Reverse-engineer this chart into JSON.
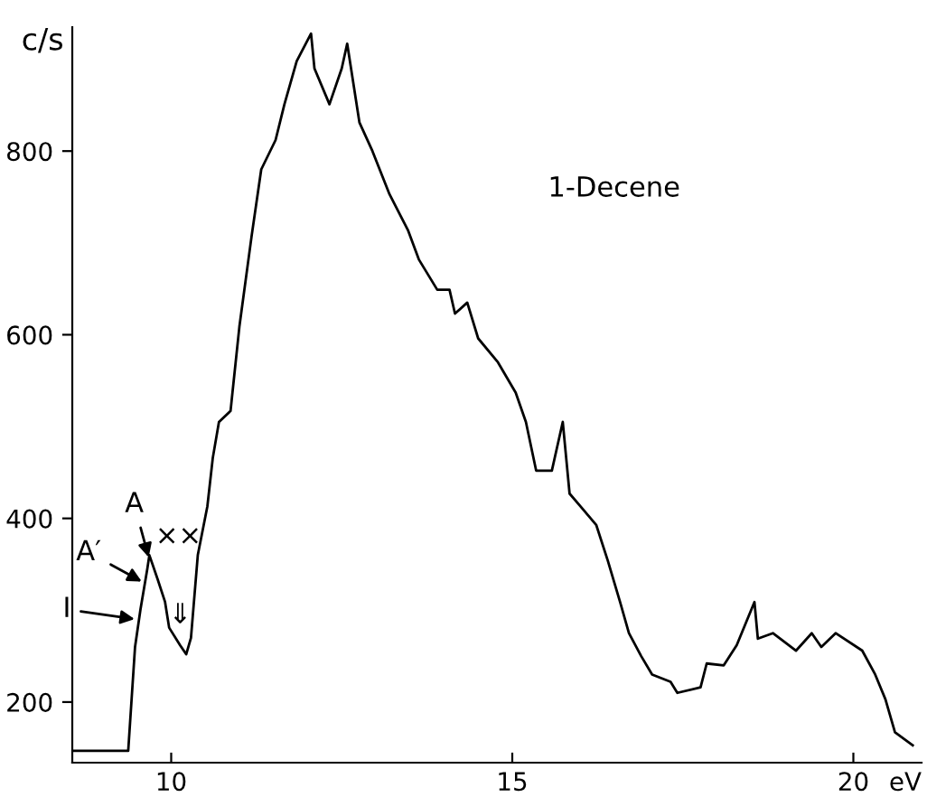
{
  "chart_data": {
    "type": "line",
    "ylabel": "c/s",
    "xlabel": "eV",
    "xlim": [
      8.55,
      21.0
    ],
    "xticks": [
      10,
      15,
      20
    ],
    "ylim": [
      134,
      935
    ],
    "yticks": [
      200,
      400,
      600,
      800
    ],
    "grid": false,
    "legend": false,
    "marker": "none",
    "line_style": "solid",
    "annotations": [
      "1-Decene",
      {
        "text": "A",
        "x": 9.68,
        "y": 355
      },
      {
        "text": "A′",
        "x": 9.6,
        "y": 330
      },
      {
        "text": "I",
        "x": 9.5,
        "y": 290
      },
      "××",
      "⇓"
    ],
    "series": [
      {
        "color": "#000000",
        "x": [
          8.55,
          9.37,
          9.47,
          9.55,
          9.65,
          9.68,
          9.8,
          9.91,
          9.97,
          10.13,
          10.22,
          10.29,
          10.39,
          10.53,
          10.61,
          10.7,
          10.87,
          11.0,
          11.18,
          11.32,
          11.53,
          11.66,
          11.84,
          12.05,
          12.1,
          12.32,
          12.5,
          12.58,
          12.76,
          12.95,
          13.2,
          13.47,
          13.63,
          13.9,
          14.08,
          14.16,
          14.34,
          14.5,
          14.79,
          15.05,
          15.2,
          15.35,
          15.58,
          15.74,
          15.84,
          16.0,
          16.23,
          16.4,
          16.58,
          16.71,
          16.89,
          17.05,
          17.32,
          17.42,
          17.76,
          17.85,
          18.1,
          18.29,
          18.55,
          18.6,
          18.82,
          19.16,
          19.39,
          19.53,
          19.74,
          20.13,
          20.32,
          20.47,
          20.61,
          20.87
        ],
        "values": [
          147,
          147,
          260,
          301,
          345,
          360,
          334,
          309,
          281,
          262,
          252,
          270,
          360,
          413,
          466,
          505,
          517,
          609,
          708,
          780,
          812,
          851,
          898,
          928,
          890,
          851,
          890,
          917,
          831,
          800,
          753,
          714,
          682,
          649,
          649,
          623,
          635,
          596,
          570,
          537,
          505,
          452,
          452,
          505,
          427,
          413,
          393,
          354,
          309,
          275,
          250,
          230,
          222,
          210,
          216,
          242,
          240,
          262,
          309,
          269,
          275,
          256,
          275,
          260,
          275,
          256,
          230,
          203,
          167,
          153
        ]
      }
    ]
  }
}
